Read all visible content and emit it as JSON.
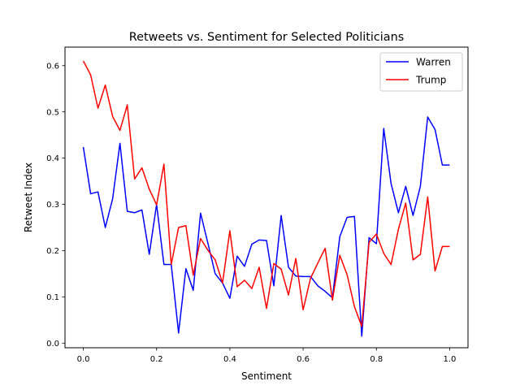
{
  "chart_data": {
    "type": "line",
    "title": "Retweets vs. Sentiment for Selected Politicians",
    "xlabel": "Sentiment",
    "ylabel": "Retweet Index",
    "xlim": [
      -0.05,
      1.05
    ],
    "ylim": [
      -0.01,
      0.64
    ],
    "xticks": [
      0.0,
      0.2,
      0.4,
      0.6,
      0.8,
      1.0
    ],
    "xtick_labels": [
      "0.0",
      "0.2",
      "0.4",
      "0.6",
      "0.8",
      "1.0"
    ],
    "yticks": [
      0.0,
      0.1,
      0.2,
      0.3,
      0.4,
      0.5,
      0.6
    ],
    "ytick_labels": [
      "0.0",
      "0.1",
      "0.2",
      "0.3",
      "0.4",
      "0.5",
      "0.6"
    ],
    "grid": false,
    "legend_position": "top-right",
    "x": [
      0.0,
      0.02,
      0.04,
      0.06,
      0.08,
      0.1,
      0.12,
      0.14,
      0.16,
      0.18,
      0.2,
      0.22,
      0.24,
      0.26,
      0.28,
      0.3,
      0.32,
      0.34,
      0.36,
      0.38,
      0.4,
      0.42,
      0.44,
      0.46,
      0.48,
      0.5,
      0.52,
      0.54,
      0.56,
      0.58,
      0.6,
      0.62,
      0.64,
      0.66,
      0.68,
      0.7,
      0.72,
      0.74,
      0.76,
      0.78,
      0.8,
      0.82,
      0.84,
      0.86,
      0.88,
      0.9,
      0.92,
      0.94,
      0.96,
      0.98,
      1.0
    ],
    "series": [
      {
        "name": "Warren",
        "color": "#0000ff",
        "values": [
          0.424,
          0.323,
          0.327,
          0.25,
          0.312,
          0.432,
          0.285,
          0.282,
          0.288,
          0.192,
          0.3,
          0.17,
          0.17,
          0.022,
          0.161,
          0.114,
          0.281,
          0.216,
          0.15,
          0.13,
          0.097,
          0.188,
          0.166,
          0.214,
          0.223,
          0.222,
          0.124,
          0.276,
          0.164,
          0.145,
          0.144,
          0.144,
          0.124,
          0.112,
          0.098,
          0.23,
          0.272,
          0.274,
          0.015,
          0.228,
          0.215,
          0.464,
          0.345,
          0.282,
          0.339,
          0.276,
          0.339,
          0.489,
          0.462,
          0.385,
          0.385
        ]
      },
      {
        "name": "Trump",
        "color": "#ff0000",
        "values": [
          0.61,
          0.58,
          0.508,
          0.558,
          0.49,
          0.46,
          0.515,
          0.355,
          0.379,
          0.333,
          0.299,
          0.387,
          0.17,
          0.25,
          0.254,
          0.147,
          0.226,
          0.201,
          0.18,
          0.13,
          0.243,
          0.122,
          0.136,
          0.118,
          0.164,
          0.075,
          0.172,
          0.16,
          0.104,
          0.183,
          0.072,
          0.14,
          0.173,
          0.205,
          0.093,
          0.19,
          0.148,
          0.079,
          0.036,
          0.218,
          0.236,
          0.194,
          0.17,
          0.246,
          0.303,
          0.18,
          0.192,
          0.316,
          0.156,
          0.209,
          0.209
        ]
      }
    ]
  }
}
